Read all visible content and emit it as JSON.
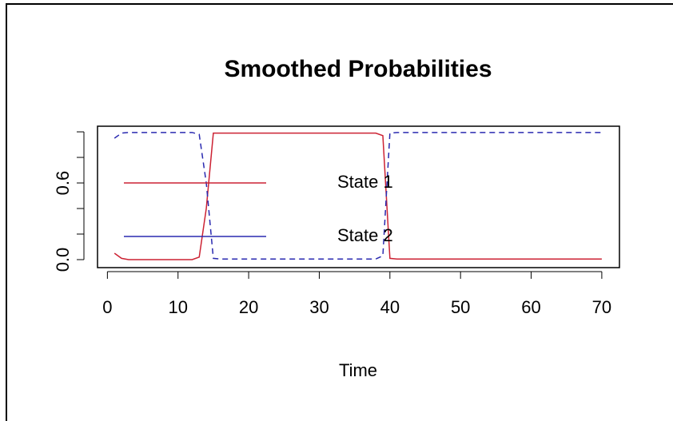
{
  "chart_data": {
    "type": "line",
    "title": "Smoothed Probabilities",
    "x_label": "Time",
    "x": [
      1,
      2,
      3,
      4,
      5,
      6,
      7,
      8,
      9,
      10,
      11,
      12,
      13,
      14,
      15,
      16,
      17,
      18,
      19,
      20,
      21,
      22,
      23,
      24,
      25,
      26,
      27,
      28,
      29,
      30,
      31,
      32,
      33,
      34,
      35,
      36,
      37,
      38,
      39,
      40,
      41,
      42,
      43,
      44,
      45,
      46,
      47,
      48,
      49,
      50,
      51,
      52,
      53,
      54,
      55,
      56,
      57,
      58,
      59,
      60,
      61,
      62,
      63,
      64,
      65,
      66,
      67,
      68,
      69,
      70
    ],
    "series": [
      {
        "name": "State 1",
        "color": "#cc2233",
        "dash": false,
        "values": [
          0.05,
          0.01,
          0,
          0,
          0,
          0,
          0,
          0,
          0,
          0,
          0,
          0,
          0.02,
          0.4,
          0.99,
          0.99,
          0.99,
          0.99,
          0.99,
          0.99,
          0.99,
          0.99,
          0.99,
          0.99,
          0.99,
          0.99,
          0.99,
          0.99,
          0.99,
          0.99,
          0.99,
          0.99,
          0.99,
          0.99,
          0.99,
          0.99,
          0.99,
          0.99,
          0.97,
          0.01,
          0.005,
          0.005,
          0.005,
          0.005,
          0.005,
          0.005,
          0.005,
          0.005,
          0.005,
          0.005,
          0.005,
          0.005,
          0.005,
          0.005,
          0.005,
          0.005,
          0.005,
          0.005,
          0.005,
          0.005,
          0.005,
          0.005,
          0.005,
          0.005,
          0.005,
          0.005,
          0.005,
          0.005,
          0.005,
          0.005
        ]
      },
      {
        "name": "State 2",
        "color": "#2a2ab0",
        "dash": true,
        "values": [
          0.95,
          0.99,
          0.995,
          0.995,
          0.995,
          0.995,
          0.995,
          0.995,
          0.995,
          0.995,
          0.995,
          0.995,
          0.98,
          0.6,
          0.01,
          0.005,
          0.005,
          0.005,
          0.005,
          0.005,
          0.005,
          0.005,
          0.005,
          0.005,
          0.005,
          0.005,
          0.005,
          0.005,
          0.005,
          0.005,
          0.005,
          0.005,
          0.005,
          0.005,
          0.005,
          0.005,
          0.005,
          0.005,
          0.03,
          0.99,
          0.995,
          0.995,
          0.995,
          0.995,
          0.995,
          0.995,
          0.995,
          0.995,
          0.995,
          0.995,
          0.995,
          0.995,
          0.995,
          0.995,
          0.995,
          0.995,
          0.995,
          0.995,
          0.995,
          0.995,
          0.995,
          0.995,
          0.995,
          0.995,
          0.995,
          0.995,
          0.995,
          0.995,
          0.995,
          0.995
        ]
      }
    ],
    "xlim": [
      -1.4,
      72.5
    ],
    "xticks": [
      0,
      10,
      20,
      30,
      40,
      50,
      60,
      70
    ],
    "ylim": [
      -0.0625,
      1.044
    ],
    "yticks": [
      {
        "value": 0,
        "label": "0.0"
      },
      {
        "value": 0.2,
        "label": null
      },
      {
        "value": 0.4,
        "label": null
      },
      {
        "value": 0.6,
        "label": "0.6"
      },
      {
        "value": 0.8,
        "label": null
      },
      {
        "value": 1.0,
        "label": null
      }
    ],
    "legend": "left"
  }
}
